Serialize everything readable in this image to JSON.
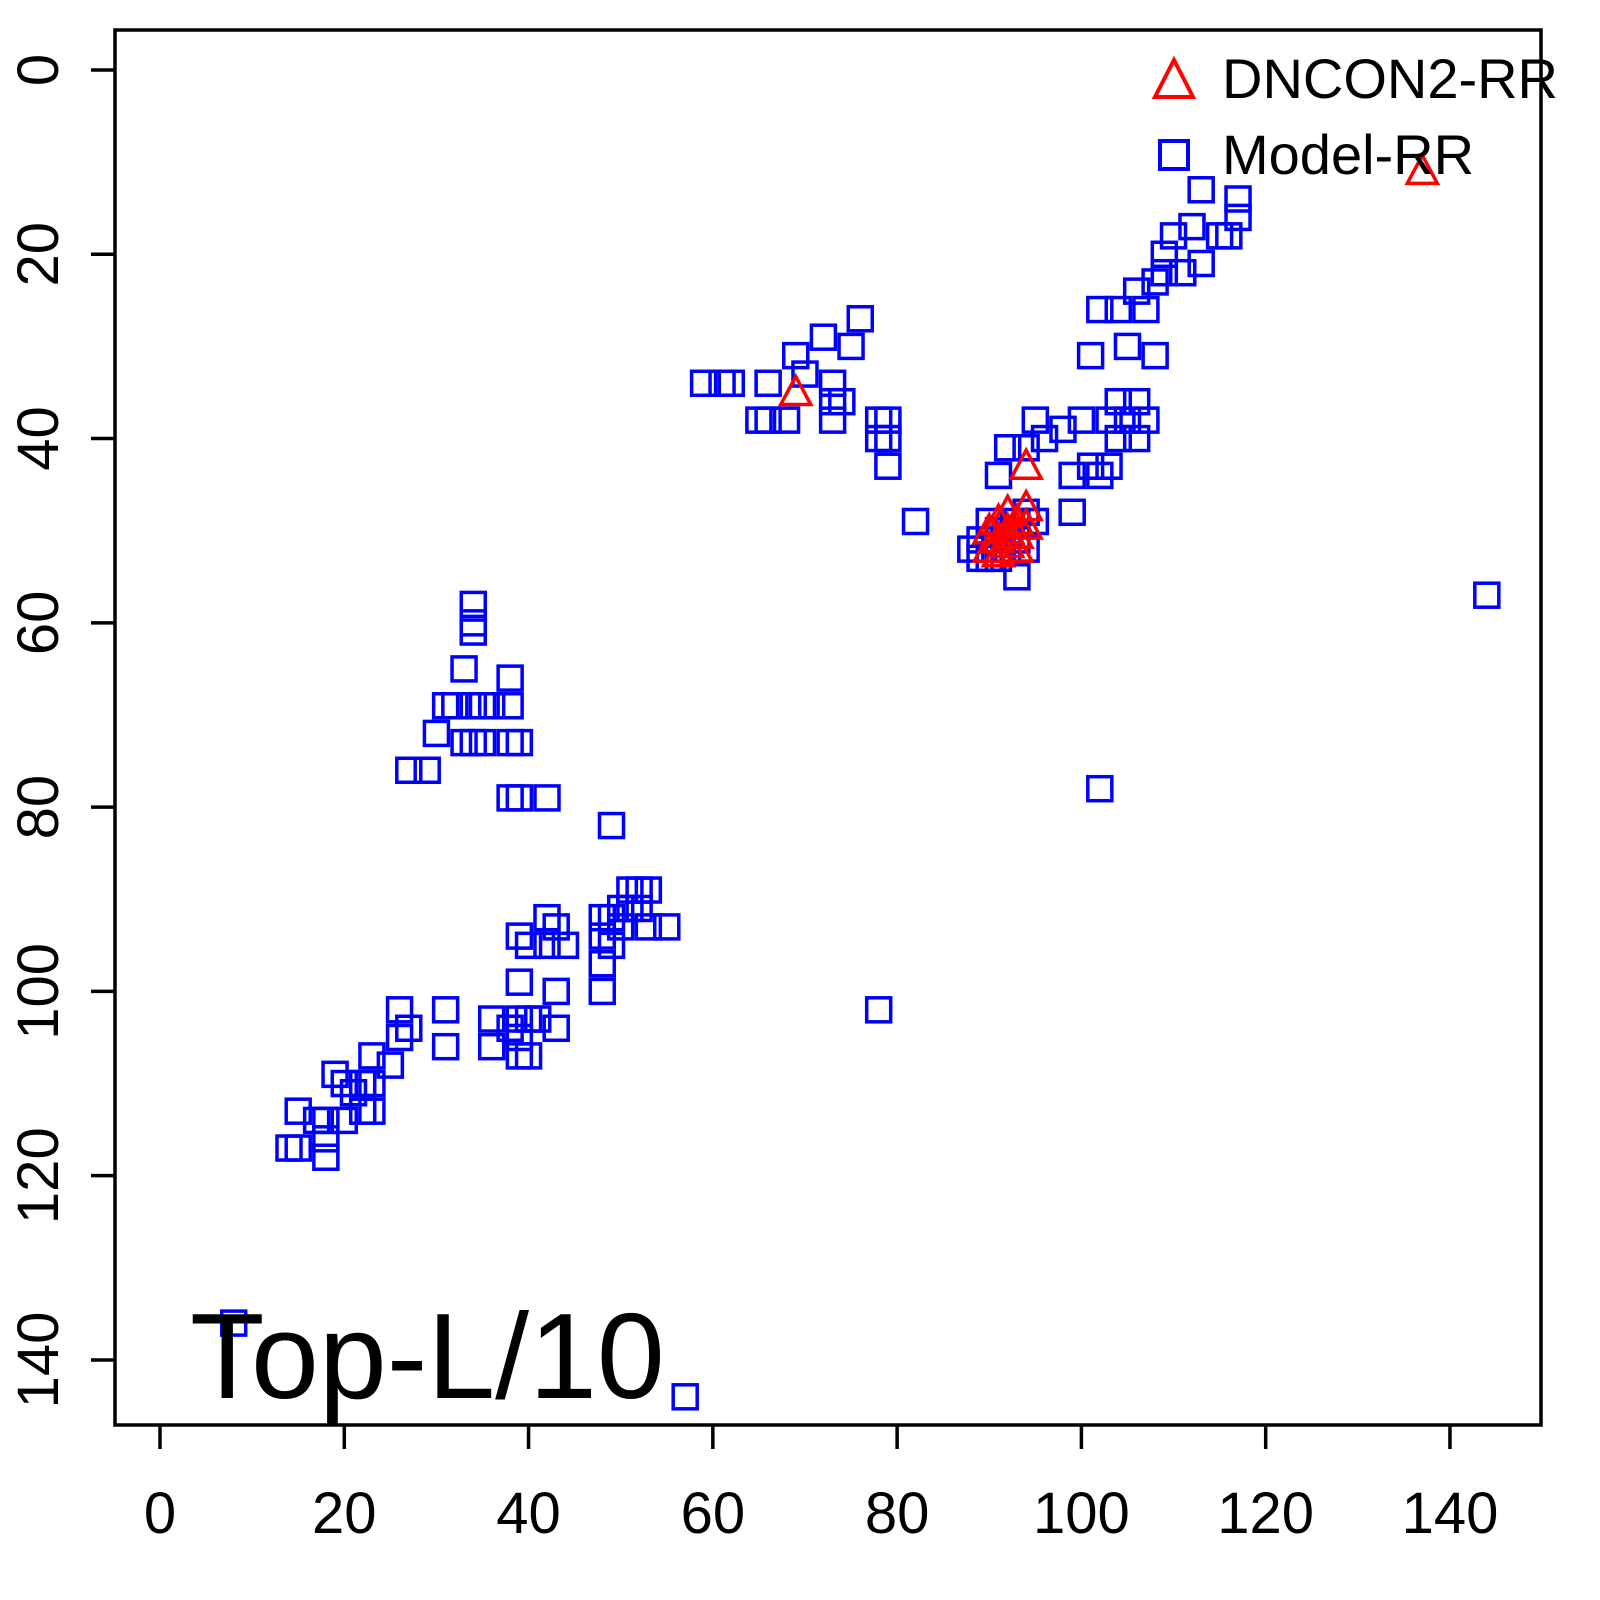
{
  "figure": {
    "annotation": "Top-L/10"
  },
  "chart_data": {
    "type": "scatter",
    "title": "",
    "annotation": "Top-L/10",
    "xlabel": "",
    "ylabel": "",
    "x_ticks": [
      0,
      20,
      40,
      60,
      80,
      100,
      120,
      140
    ],
    "y_ticks": [
      0,
      20,
      40,
      60,
      80,
      100,
      120,
      140
    ],
    "xlim": [
      -5,
      150
    ],
    "ylim": [
      148,
      -4.5
    ],
    "y_axis_inverted": true,
    "grid": false,
    "legend_position": "top-right",
    "axis_color": "#000000",
    "series": [
      {
        "name": "DNCON2-RR",
        "marker": "open-triangle",
        "color": "#FF0000",
        "points": [
          [
            137,
            11
          ],
          [
            69,
            35
          ],
          [
            94,
            43
          ],
          [
            90,
            50
          ],
          [
            90,
            52
          ],
          [
            91,
            49
          ],
          [
            91,
            51
          ],
          [
            91,
            52.5
          ],
          [
            92,
            48
          ],
          [
            92,
            50
          ],
          [
            92,
            51.5
          ],
          [
            93,
            49
          ],
          [
            93,
            50.5
          ],
          [
            93,
            52
          ],
          [
            94,
            47.5
          ],
          [
            94,
            49.5
          ]
        ]
      },
      {
        "name": "Model-RR",
        "marker": "open-square",
        "color": "#0000FF",
        "points": [
          [
            117,
            14
          ],
          [
            117,
            16
          ],
          [
            115,
            18
          ],
          [
            116,
            18
          ],
          [
            113,
            13
          ],
          [
            112,
            17
          ],
          [
            113,
            21
          ],
          [
            110,
            18
          ],
          [
            109,
            20
          ],
          [
            109,
            22
          ],
          [
            111,
            22
          ],
          [
            108,
            23
          ],
          [
            106,
            24
          ],
          [
            107,
            26
          ],
          [
            104,
            26
          ],
          [
            102,
            26
          ],
          [
            105,
            30
          ],
          [
            108,
            31
          ],
          [
            101,
            31
          ],
          [
            104,
            36
          ],
          [
            106,
            36
          ],
          [
            103,
            38
          ],
          [
            105,
            38
          ],
          [
            107,
            38
          ],
          [
            104,
            40
          ],
          [
            106,
            40
          ],
          [
            100,
            38
          ],
          [
            98,
            39
          ],
          [
            96,
            40
          ],
          [
            101,
            43
          ],
          [
            103,
            43
          ],
          [
            99,
            44
          ],
          [
            102,
            44
          ],
          [
            76,
            27
          ],
          [
            75,
            30
          ],
          [
            72,
            29
          ],
          [
            69,
            31
          ],
          [
            70,
            33
          ],
          [
            66,
            34
          ],
          [
            59,
            34
          ],
          [
            61,
            34
          ],
          [
            62,
            34
          ],
          [
            65,
            38
          ],
          [
            66,
            38
          ],
          [
            68,
            38
          ],
          [
            73,
            34
          ],
          [
            73,
            36
          ],
          [
            74,
            36
          ],
          [
            73,
            38
          ],
          [
            78,
            38
          ],
          [
            79,
            38
          ],
          [
            79,
            40
          ],
          [
            78,
            40
          ],
          [
            79,
            43
          ],
          [
            82,
            49
          ],
          [
            92,
            41
          ],
          [
            94,
            41
          ],
          [
            91,
            44
          ],
          [
            95,
            38
          ],
          [
            90,
            49
          ],
          [
            89,
            51
          ],
          [
            88,
            52
          ],
          [
            89,
            53
          ],
          [
            91,
            50
          ],
          [
            92,
            50
          ],
          [
            93,
            49
          ],
          [
            94,
            48
          ],
          [
            95,
            49
          ],
          [
            93,
            51
          ],
          [
            92,
            52
          ],
          [
            94,
            52
          ],
          [
            91,
            53
          ],
          [
            90,
            53
          ],
          [
            93,
            55
          ],
          [
            99,
            48
          ],
          [
            144,
            57
          ],
          [
            102,
            78
          ],
          [
            78,
            102
          ],
          [
            34,
            58
          ],
          [
            34,
            60
          ],
          [
            34,
            61
          ],
          [
            33,
            65
          ],
          [
            38,
            66
          ],
          [
            34,
            69
          ],
          [
            31,
            69
          ],
          [
            32,
            69
          ],
          [
            35,
            69
          ],
          [
            36,
            69
          ],
          [
            38,
            69
          ],
          [
            30,
            72
          ],
          [
            33,
            73
          ],
          [
            34,
            73
          ],
          [
            35,
            73
          ],
          [
            38,
            73
          ],
          [
            39,
            73
          ],
          [
            27,
            76
          ],
          [
            29,
            76
          ],
          [
            38,
            79
          ],
          [
            39,
            79
          ],
          [
            42,
            79
          ],
          [
            49,
            82
          ],
          [
            51,
            89
          ],
          [
            52,
            89
          ],
          [
            53,
            89
          ],
          [
            50,
            91
          ],
          [
            51,
            91
          ],
          [
            52,
            91
          ],
          [
            42,
            92
          ],
          [
            43,
            93
          ],
          [
            48,
            92
          ],
          [
            49,
            92
          ],
          [
            50,
            93
          ],
          [
            53,
            93
          ],
          [
            55,
            93
          ],
          [
            48,
            94
          ],
          [
            49,
            95
          ],
          [
            44,
            95
          ],
          [
            42,
            95
          ],
          [
            39,
            94
          ],
          [
            40,
            95
          ],
          [
            48,
            97
          ],
          [
            39,
            99
          ],
          [
            43,
            100
          ],
          [
            48,
            100
          ],
          [
            26,
            102
          ],
          [
            31,
            102
          ],
          [
            36,
            103
          ],
          [
            39,
            103
          ],
          [
            40,
            103
          ],
          [
            41,
            103
          ],
          [
            43,
            104
          ],
          [
            38,
            104
          ],
          [
            39,
            105
          ],
          [
            36,
            106
          ],
          [
            31,
            106
          ],
          [
            39,
            107
          ],
          [
            40,
            107
          ],
          [
            26,
            105
          ],
          [
            27,
            104
          ],
          [
            23,
            107
          ],
          [
            25,
            108
          ],
          [
            19,
            109
          ],
          [
            20,
            110
          ],
          [
            22,
            110
          ],
          [
            23,
            110
          ],
          [
            21,
            111
          ],
          [
            22,
            113
          ],
          [
            23,
            113
          ],
          [
            15,
            113
          ],
          [
            17,
            114
          ],
          [
            18,
            114
          ],
          [
            20,
            114
          ],
          [
            14,
            117
          ],
          [
            15,
            117
          ],
          [
            18,
            116
          ],
          [
            18,
            118
          ],
          [
            8,
            136
          ],
          [
            57,
            144
          ]
        ]
      }
    ]
  }
}
